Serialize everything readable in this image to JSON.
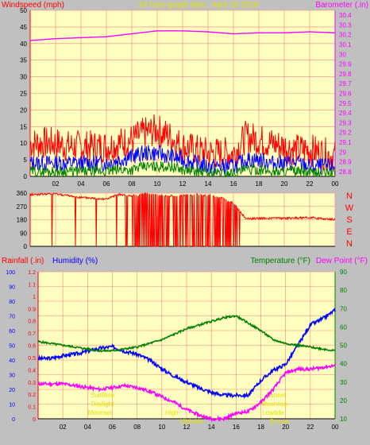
{
  "colors": {
    "background": "#c0c0c0",
    "plot_bg": "#ffffc0",
    "grid": "#ff8080",
    "wind": "#ff0000",
    "gust": "#ff2020",
    "avg": "#0000ff",
    "low": "#008000",
    "baro": "#ff00ff",
    "title": "#e0e000",
    "temp": "#008000",
    "dew": "#ff00ff",
    "humidity": "#0000ff",
    "rain": "#ff0000",
    "sun": "#e0e000"
  },
  "chart_data": [
    {
      "type": "line",
      "title": "24 hour graph date : April 20 2018",
      "left_label": "Windspeed (mph)",
      "right_label": "Barometer (.in)",
      "x_ticks": [
        "02",
        "04",
        "06",
        "08",
        "10",
        "12",
        "14",
        "16",
        "18",
        "20",
        "22",
        "00"
      ],
      "y_left_ticks": [
        "0",
        "5",
        "10",
        "15",
        "20",
        "25",
        "30",
        "35",
        "40",
        "45",
        "50"
      ],
      "y_left_range": [
        0,
        50
      ],
      "y_right_ticks": [
        "28.8",
        "28.9",
        "29",
        "29.1",
        "29.2",
        "29.3",
        "29.4",
        "29.5",
        "29.6",
        "29.7",
        "29.8",
        "29.9",
        "30",
        "30.1",
        "30.2",
        "30.3",
        "30.4"
      ],
      "y_right_range": [
        28.75,
        30.45
      ],
      "series": [
        {
          "key": "gust",
          "color": "#ff0000",
          "x": [
            0,
            1,
            2,
            3,
            4,
            5,
            6,
            7,
            8,
            9,
            10,
            11,
            12,
            13,
            14,
            15,
            16,
            17,
            18,
            19,
            20,
            21,
            22,
            23,
            24
          ],
          "values": [
            10,
            10,
            10,
            9,
            9,
            9,
            9,
            10,
            11,
            13,
            14,
            12,
            9,
            8,
            7,
            7,
            7,
            12,
            11,
            10,
            9,
            8,
            8,
            7,
            6
          ]
        },
        {
          "key": "avg",
          "color": "#0000ff",
          "x": [
            0,
            1,
            2,
            3,
            4,
            5,
            6,
            7,
            8,
            9,
            10,
            11,
            12,
            13,
            14,
            15,
            16,
            17,
            18,
            19,
            20,
            21,
            22,
            23,
            24
          ],
          "values": [
            4,
            4,
            4,
            4,
            4,
            4,
            4,
            5,
            6,
            7,
            7,
            6,
            5,
            4,
            3,
            3,
            3,
            5,
            5,
            4,
            4,
            4,
            3,
            3,
            3
          ]
        },
        {
          "key": "low",
          "color": "#008000",
          "x": [
            0,
            1,
            2,
            3,
            4,
            5,
            6,
            7,
            8,
            9,
            10,
            11,
            12,
            13,
            14,
            15,
            16,
            17,
            18,
            19,
            20,
            21,
            22,
            23,
            24
          ],
          "values": [
            1.5,
            1.5,
            1.5,
            1.5,
            1.5,
            1.5,
            1.5,
            2,
            2,
            3,
            3,
            3,
            2,
            1.5,
            1,
            1,
            1,
            2,
            2,
            1.5,
            1.5,
            1.5,
            1,
            1,
            1
          ]
        },
        {
          "key": "baro",
          "color": "#ff00ff",
          "axis": "right",
          "x": [
            0,
            2,
            4,
            6,
            8,
            10,
            12,
            14,
            16,
            18,
            20,
            22,
            24
          ],
          "values": [
            30.14,
            30.16,
            30.17,
            30.18,
            30.21,
            30.24,
            30.24,
            30.23,
            30.21,
            30.22,
            30.22,
            30.23,
            30.22
          ]
        }
      ]
    },
    {
      "type": "scatter",
      "title": "",
      "right_labels": [
        "N",
        "W",
        "S",
        "E",
        "N"
      ],
      "x_ticks": [],
      "y_ticks": [
        "0",
        "90",
        "180",
        "270",
        "360"
      ],
      "y_range": [
        0,
        360
      ],
      "series": [
        {
          "key": "direction",
          "color": "#ff0000",
          "x": [
            0,
            2,
            4,
            6,
            7,
            8,
            9,
            10,
            11,
            12,
            13,
            14,
            15,
            16,
            17,
            18,
            20,
            22,
            24
          ],
          "values": [
            350,
            355,
            330,
            320,
            350,
            340,
            355,
            350,
            340,
            345,
            350,
            345,
            330,
            290,
            185,
            190,
            190,
            195,
            180
          ]
        }
      ]
    },
    {
      "type": "line",
      "title": "",
      "left_labels": [
        "Rainfall (.in)",
        "Humidity (%)"
      ],
      "right_labels": [
        "Temperature (°F)",
        "Dew Point (°F)"
      ],
      "x_ticks": [
        "02",
        "04",
        "06",
        "08",
        "10",
        "12",
        "14",
        "16",
        "18",
        "20",
        "22",
        "00"
      ],
      "y_humidity_ticks": [
        "0",
        "10",
        "20",
        "30",
        "40",
        "50",
        "60",
        "70",
        "80",
        "90",
        "100"
      ],
      "y_humidity_range": [
        0,
        100
      ],
      "y_rain_ticks": [
        "0",
        "0.1",
        "0.2",
        "0.3",
        "0.4",
        "0.5",
        "0.6",
        "0.7",
        "0.8",
        "0.9",
        "1",
        "1.1",
        "1.2"
      ],
      "y_rain_range": [
        0,
        1.2
      ],
      "y_temp_ticks": [
        "10",
        "20",
        "30",
        "40",
        "50",
        "60",
        "70",
        "80",
        "90"
      ],
      "y_temp_range": [
        10,
        90
      ],
      "series": [
        {
          "key": "humidity",
          "color": "#0000ff",
          "axis": "humidity",
          "x": [
            0,
            1,
            2,
            3,
            4,
            5,
            6,
            7,
            8,
            9,
            10,
            11,
            12,
            13,
            14,
            15,
            16,
            17,
            18,
            19,
            20,
            21,
            22,
            23,
            24
          ],
          "values": [
            41,
            41,
            43,
            44,
            46,
            48,
            49,
            46,
            44,
            40,
            34,
            29,
            25,
            21,
            18,
            16,
            16,
            16,
            26,
            33,
            37,
            50,
            64,
            68,
            74
          ]
        },
        {
          "key": "temperature",
          "color": "#008000",
          "axis": "temp",
          "x": [
            0,
            1,
            2,
            3,
            4,
            5,
            6,
            7,
            8,
            9,
            10,
            11,
            12,
            13,
            14,
            15,
            16,
            17,
            18,
            19,
            20,
            21,
            22,
            23,
            24
          ],
          "values": [
            52,
            51,
            50,
            49,
            48,
            47,
            47,
            48,
            49,
            51,
            53,
            56,
            59,
            61,
            63,
            65,
            66,
            62,
            58,
            53,
            51,
            50,
            49,
            48,
            47
          ]
        },
        {
          "key": "dewpoint",
          "color": "#ff00ff",
          "axis": "temp",
          "x": [
            0,
            1,
            2,
            3,
            4,
            5,
            6,
            7,
            8,
            9,
            10,
            11,
            12,
            13,
            14,
            15,
            16,
            17,
            18,
            19,
            20,
            21,
            22,
            23,
            24
          ],
          "values": [
            29,
            29,
            29,
            28,
            27,
            26,
            27,
            28,
            27,
            25,
            22,
            19,
            15,
            12,
            10,
            10,
            13,
            14,
            19,
            26,
            35,
            37,
            37,
            38,
            39
          ]
        }
      ],
      "annotations": [
        {
          "text": "SunRise",
          "x": 5.2,
          "line": 0
        },
        {
          "text": "Daylight",
          "x": 5.2,
          "line": 1
        },
        {
          "text": "Moonset",
          "x": 5.0,
          "line": 2
        },
        {
          "text": "High",
          "x": 10.8,
          "line": 2
        },
        {
          "text": "Hightide",
          "x": 12.4,
          "line": 3
        },
        {
          "text": "Sunset",
          "x": 19.2,
          "line": 0
        },
        {
          "text": "Moonrise",
          "x": 19.1,
          "line": 1
        },
        {
          "text": "Lowtide",
          "x": 19.0,
          "line": 2
        },
        {
          "text": "Sunset",
          "x": 19.5,
          "line": 3
        }
      ]
    }
  ]
}
